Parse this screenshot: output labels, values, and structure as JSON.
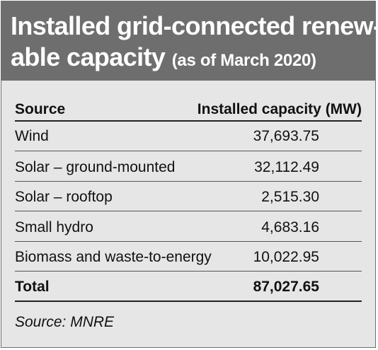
{
  "title": {
    "line1": "Installed grid-connected renew-",
    "line2_main": "able capacity",
    "line2_sub": "(as of March 2020)"
  },
  "table": {
    "headers": [
      "Source",
      "Installed capacity (MW)"
    ],
    "rows": [
      [
        "Wind",
        "37,693.75"
      ],
      [
        "Solar – ground-mounted",
        "32,112.49"
      ],
      [
        "Solar – rooftop",
        "2,515.30"
      ],
      [
        "Small hydro",
        "4,683.16"
      ],
      [
        "Biomass and waste-to-energy",
        "10,022.95"
      ]
    ],
    "total": [
      "Total",
      "87,027.65"
    ]
  },
  "source_note": "Source: MNRE",
  "colors": {
    "header_bg": "#6e6e6e",
    "panel_bg": "#e6e6e6",
    "text": "#111111"
  }
}
